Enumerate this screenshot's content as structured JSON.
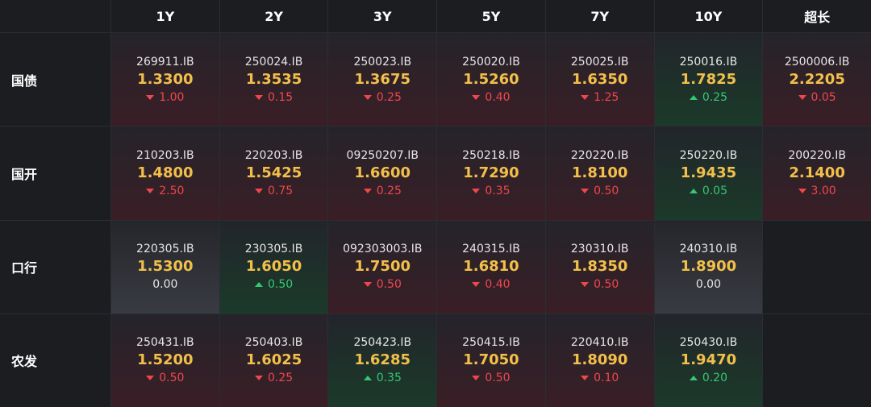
{
  "colors": {
    "background": "#1c1d21",
    "price": "#f2c04a",
    "up": "#f0464f",
    "down": "#34c872"
  },
  "columns": [
    "1Y",
    "2Y",
    "3Y",
    "5Y",
    "7Y",
    "10Y",
    "超长"
  ],
  "rows": [
    {
      "label": "国债",
      "cells": [
        {
          "code": "269911.IB",
          "price": "1.3300",
          "change": "1.00",
          "dir": "up"
        },
        {
          "code": "250024.IB",
          "price": "1.3535",
          "change": "0.15",
          "dir": "up"
        },
        {
          "code": "250023.IB",
          "price": "1.3675",
          "change": "0.25",
          "dir": "up"
        },
        {
          "code": "250020.IB",
          "price": "1.5260",
          "change": "0.40",
          "dir": "up"
        },
        {
          "code": "250025.IB",
          "price": "1.6350",
          "change": "1.25",
          "dir": "up"
        },
        {
          "code": "250016.IB",
          "price": "1.7825",
          "change": "0.25",
          "dir": "down"
        },
        {
          "code": "2500006.IB",
          "price": "2.2205",
          "change": "0.05",
          "dir": "up"
        }
      ]
    },
    {
      "label": "国开",
      "cells": [
        {
          "code": "210203.IB",
          "price": "1.4800",
          "change": "2.50",
          "dir": "up"
        },
        {
          "code": "220203.IB",
          "price": "1.5425",
          "change": "0.75",
          "dir": "up"
        },
        {
          "code": "09250207.IB",
          "price": "1.6600",
          "change": "0.25",
          "dir": "up"
        },
        {
          "code": "250218.IB",
          "price": "1.7290",
          "change": "0.35",
          "dir": "up"
        },
        {
          "code": "220220.IB",
          "price": "1.8100",
          "change": "0.50",
          "dir": "up"
        },
        {
          "code": "250220.IB",
          "price": "1.9435",
          "change": "0.05",
          "dir": "down"
        },
        {
          "code": "200220.IB",
          "price": "2.1400",
          "change": "3.00",
          "dir": "up"
        }
      ]
    },
    {
      "label": "口行",
      "cells": [
        {
          "code": "220305.IB",
          "price": "1.5300",
          "change": "0.00",
          "dir": "flat"
        },
        {
          "code": "230305.IB",
          "price": "1.6050",
          "change": "0.50",
          "dir": "down"
        },
        {
          "code": "092303003.IB",
          "price": "1.7500",
          "change": "0.50",
          "dir": "up"
        },
        {
          "code": "240315.IB",
          "price": "1.6810",
          "change": "0.40",
          "dir": "up"
        },
        {
          "code": "230310.IB",
          "price": "1.8350",
          "change": "0.50",
          "dir": "up"
        },
        {
          "code": "240310.IB",
          "price": "1.8900",
          "change": "0.00",
          "dir": "flat"
        },
        null
      ]
    },
    {
      "label": "农发",
      "cells": [
        {
          "code": "250431.IB",
          "price": "1.5200",
          "change": "0.50",
          "dir": "up"
        },
        {
          "code": "250403.IB",
          "price": "1.6025",
          "change": "0.25",
          "dir": "up"
        },
        {
          "code": "250423.IB",
          "price": "1.6285",
          "change": "0.35",
          "dir": "down"
        },
        {
          "code": "250415.IB",
          "price": "1.7050",
          "change": "0.50",
          "dir": "up"
        },
        {
          "code": "220410.IB",
          "price": "1.8090",
          "change": "0.10",
          "dir": "up"
        },
        {
          "code": "250430.IB",
          "price": "1.9470",
          "change": "0.20",
          "dir": "down"
        },
        null
      ]
    }
  ]
}
